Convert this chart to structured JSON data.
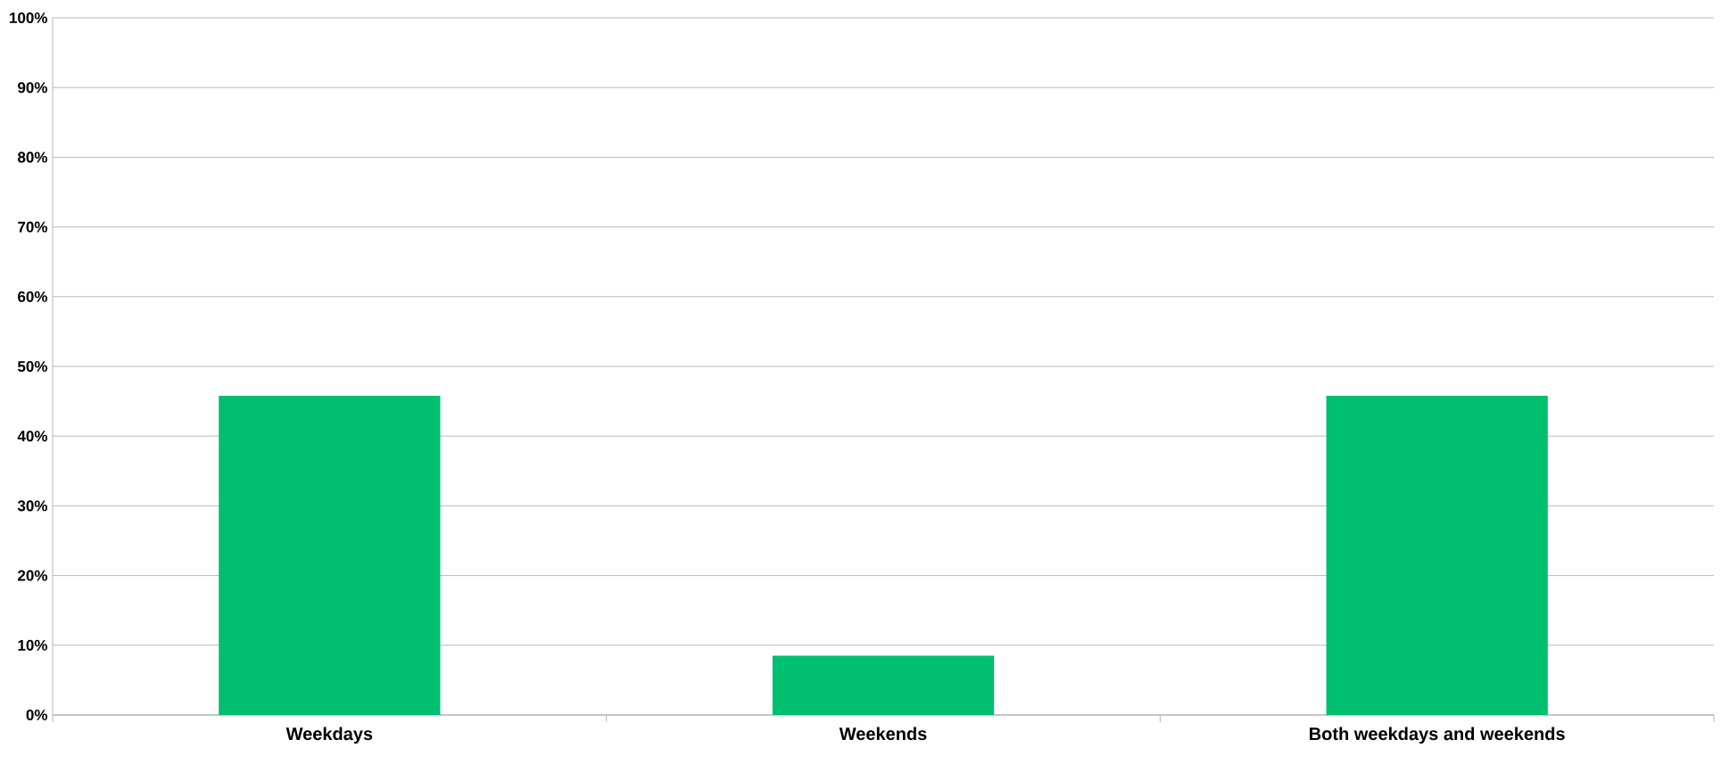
{
  "chart_data": {
    "type": "bar",
    "categories": [
      "Weekdays",
      "Weekends",
      "Both weekdays and weekends"
    ],
    "values": [
      45.8,
      8.5,
      45.8
    ],
    "color": "#00bf6f",
    "ylim": [
      0,
      100
    ],
    "yticks": [
      {
        "value": 0,
        "label": "0%"
      },
      {
        "value": 10,
        "label": "10%"
      },
      {
        "value": 20,
        "label": "20%"
      },
      {
        "value": 30,
        "label": "30%"
      },
      {
        "value": 40,
        "label": "40%"
      },
      {
        "value": 50,
        "label": "50%"
      },
      {
        "value": 60,
        "label": "60%"
      },
      {
        "value": 70,
        "label": "70%"
      },
      {
        "value": 80,
        "label": "80%"
      },
      {
        "value": 90,
        "label": "90%"
      },
      {
        "value": 100,
        "label": "100%"
      }
    ],
    "grid": "y"
  }
}
